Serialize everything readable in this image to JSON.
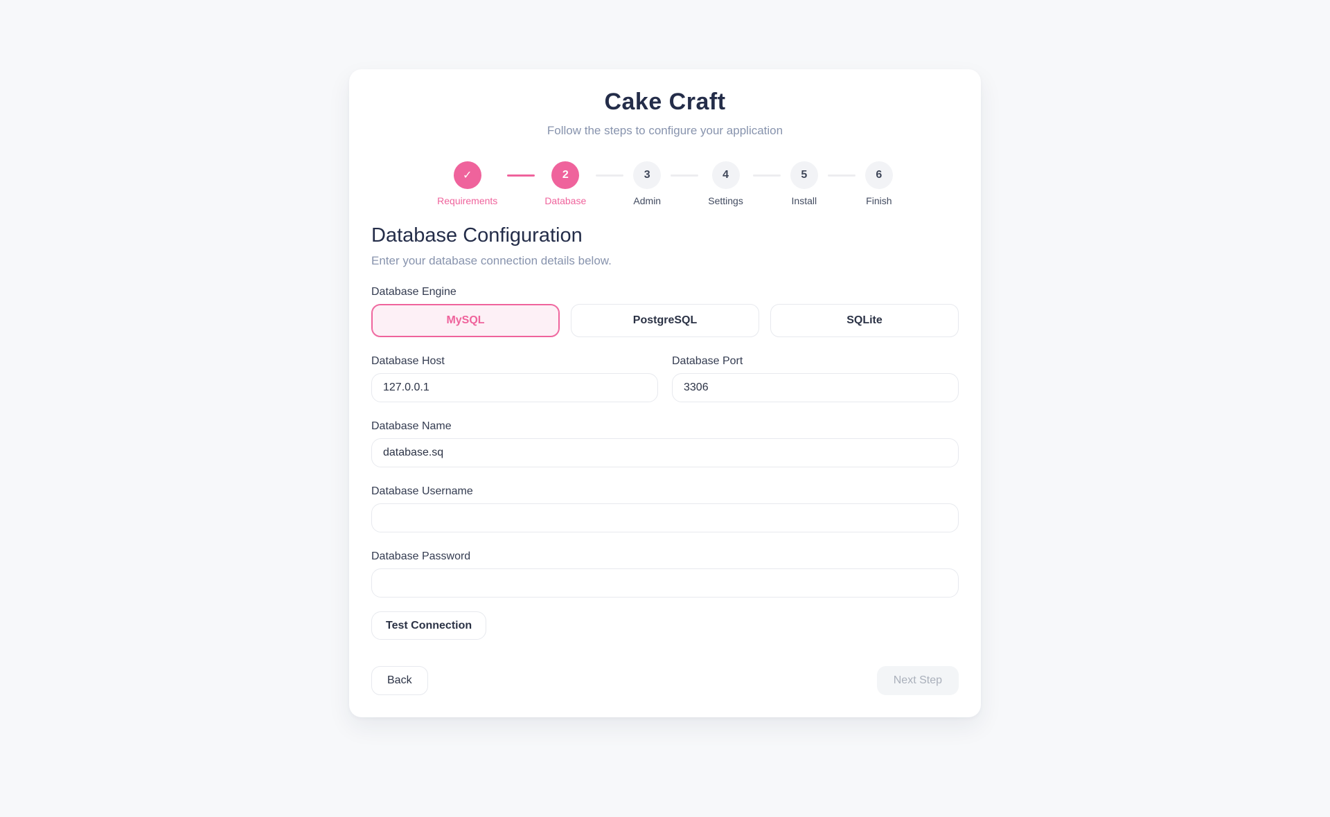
{
  "header": {
    "title": "Cake Craft",
    "subtitle": "Follow the steps to configure your application"
  },
  "stepper": {
    "steps": [
      {
        "marker": "✓",
        "label": "Requirements",
        "state": "complete"
      },
      {
        "marker": "2",
        "label": "Database",
        "state": "active"
      },
      {
        "marker": "3",
        "label": "Admin",
        "state": "upcoming"
      },
      {
        "marker": "4",
        "label": "Settings",
        "state": "upcoming"
      },
      {
        "marker": "5",
        "label": "Install",
        "state": "upcoming"
      },
      {
        "marker": "6",
        "label": "Finish",
        "state": "upcoming"
      }
    ]
  },
  "section": {
    "title": "Database Configuration",
    "subtitle": "Enter your database connection details below."
  },
  "form": {
    "engine": {
      "label": "Database Engine",
      "options": [
        {
          "label": "MySQL",
          "selected": true
        },
        {
          "label": "PostgreSQL",
          "selected": false
        },
        {
          "label": "SQLite",
          "selected": false
        }
      ]
    },
    "host": {
      "label": "Database Host",
      "value": "127.0.0.1"
    },
    "port": {
      "label": "Database Port",
      "value": "3306"
    },
    "name": {
      "label": "Database Name",
      "value": "database.sq"
    },
    "username": {
      "label": "Database Username",
      "value": ""
    },
    "password": {
      "label": "Database Password",
      "value": ""
    },
    "test_button": "Test Connection"
  },
  "footer": {
    "back": "Back",
    "next": "Next Step",
    "next_disabled": true
  },
  "colors": {
    "accent": "#ef639c",
    "accent-bg": "#fdf0f6",
    "navy": "#242d49",
    "muted": "#8793ad",
    "page-bg": "#f7f8fa"
  }
}
